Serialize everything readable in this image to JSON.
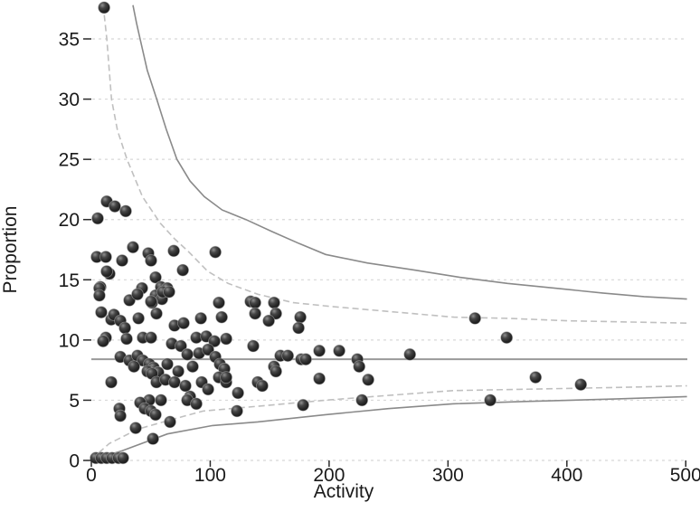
{
  "chart_data": {
    "type": "scatter",
    "variant": "funnel-plot",
    "title": "",
    "xlabel": "Activity",
    "ylabel": "Proportion",
    "xlim": [
      0,
      500
    ],
    "ylim": [
      0,
      38
    ],
    "x_ticks": [
      0,
      100,
      200,
      300,
      400,
      500
    ],
    "y_ticks": [
      0,
      5,
      10,
      15,
      20,
      25,
      30,
      35
    ],
    "grid": "horizontal-dotted",
    "legend": "none",
    "mean_line": 8.4,
    "limit_curves": {
      "upper_solid": [
        [
          35,
          37.8
        ],
        [
          38,
          36.3
        ],
        [
          41,
          35
        ],
        [
          47,
          32.4
        ],
        [
          55,
          30
        ],
        [
          63,
          27.5
        ],
        [
          72,
          25
        ],
        [
          83,
          23.2
        ],
        [
          95,
          21.9
        ],
        [
          110,
          20.8
        ],
        [
          130,
          20
        ],
        [
          152,
          19.0
        ],
        [
          175,
          18.0
        ],
        [
          197,
          17.1
        ],
        [
          232,
          16.4
        ],
        [
          272,
          15.8
        ],
        [
          310,
          15.2
        ],
        [
          350,
          14.7
        ],
        [
          390,
          14.3
        ],
        [
          430,
          13.9
        ],
        [
          465,
          13.6
        ],
        [
          501,
          13.4
        ]
      ],
      "upper_dashed": [
        [
          10,
          37.8
        ],
        [
          13,
          35
        ],
        [
          17,
          30
        ],
        [
          22,
          27.4
        ],
        [
          30,
          25
        ],
        [
          43,
          21.9
        ],
        [
          58,
          19.7
        ],
        [
          70,
          18.4
        ],
        [
          81,
          17.4
        ],
        [
          98,
          15.7
        ],
        [
          115,
          14.7
        ],
        [
          140,
          13.8
        ],
        [
          170,
          13.1
        ],
        [
          200,
          12.8
        ],
        [
          235,
          12.5
        ],
        [
          270,
          12.2
        ],
        [
          305,
          11.9
        ],
        [
          350,
          11.8
        ],
        [
          400,
          11.6
        ],
        [
          450,
          11.5
        ],
        [
          501,
          11.4
        ]
      ],
      "lower_dashed": [
        [
          0,
          0.1
        ],
        [
          15,
          1.4
        ],
        [
          39,
          2.6
        ],
        [
          64,
          3.3
        ],
        [
          94,
          4.1
        ],
        [
          140,
          4.5
        ],
        [
          197,
          5.0
        ],
        [
          250,
          5.4
        ],
        [
          304,
          5.8
        ],
        [
          360,
          5.9
        ],
        [
          412,
          6.0
        ],
        [
          460,
          6.1
        ],
        [
          501,
          6.2
        ]
      ],
      "lower_solid": [
        [
          0,
          0.05
        ],
        [
          26,
          0.8
        ],
        [
          64,
          2.2
        ],
        [
          102,
          2.9
        ],
        [
          140,
          3.2
        ],
        [
          197,
          3.8
        ],
        [
          250,
          4.3
        ],
        [
          304,
          4.7
        ],
        [
          365,
          4.9
        ],
        [
          440,
          5.1
        ],
        [
          501,
          5.3
        ]
      ]
    },
    "points": [
      [
        10.7,
        37.6
      ],
      [
        12.9,
        21.5
      ],
      [
        19.8,
        21.1
      ],
      [
        28.9,
        20.7
      ],
      [
        5.3,
        20.1
      ],
      [
        35.0,
        17.7
      ],
      [
        4.6,
        16.9
      ],
      [
        12.2,
        16.9
      ],
      [
        25.9,
        16.6
      ],
      [
        47.9,
        17.2
      ],
      [
        50.2,
        16.6
      ],
      [
        69.3,
        17.4
      ],
      [
        104.3,
        17.3
      ],
      [
        76.9,
        15.8
      ],
      [
        15.2,
        15.5
      ],
      [
        12.9,
        15.7
      ],
      [
        7.6,
        14.4
      ],
      [
        54.0,
        15.2
      ],
      [
        58.6,
        14.4
      ],
      [
        63.9,
        14.3
      ],
      [
        42.6,
        14.3
      ],
      [
        6.8,
        14.3
      ],
      [
        54.0,
        13.7
      ],
      [
        59.4,
        13.4
      ],
      [
        51.0,
        13.1
      ],
      [
        6.8,
        13.7
      ],
      [
        32.0,
        13.3
      ],
      [
        38.8,
        13.8
      ],
      [
        50.2,
        13.2
      ],
      [
        60.1,
        14.0
      ],
      [
        65.4,
        14.0
      ],
      [
        107.3,
        13.1
      ],
      [
        134.0,
        13.2
      ],
      [
        137.8,
        13.1
      ],
      [
        153.7,
        13.1
      ],
      [
        8.4,
        12.3
      ],
      [
        16.7,
        11.7
      ],
      [
        19.0,
        12.1
      ],
      [
        24.4,
        11.6
      ],
      [
        28.2,
        11.0
      ],
      [
        39.6,
        11.8
      ],
      [
        54.8,
        12.2
      ],
      [
        70.0,
        11.2
      ],
      [
        77.6,
        11.4
      ],
      [
        92.1,
        11.8
      ],
      [
        109.6,
        11.9
      ],
      [
        137.8,
        12.2
      ],
      [
        155.3,
        12.2
      ],
      [
        149.2,
        11.6
      ],
      [
        175.8,
        11.9
      ],
      [
        174.3,
        11.0
      ],
      [
        322.7,
        11.8
      ],
      [
        12.2,
        10.2
      ],
      [
        29.7,
        10.1
      ],
      [
        43.4,
        10.2
      ],
      [
        50.2,
        10.2
      ],
      [
        67.7,
        9.7
      ],
      [
        75.3,
        9.5
      ],
      [
        88.3,
        10.2
      ],
      [
        96.7,
        10.3
      ],
      [
        103.5,
        9.9
      ],
      [
        113.4,
        10.1
      ],
      [
        9.9,
        9.9
      ],
      [
        349.3,
        10.2
      ],
      [
        24.4,
        8.6
      ],
      [
        32.0,
        8.3
      ],
      [
        38.8,
        8.7
      ],
      [
        43.4,
        8.3
      ],
      [
        48.7,
        8.0
      ],
      [
        80.7,
        8.8
      ],
      [
        90.6,
        8.9
      ],
      [
        98.2,
        9.2
      ],
      [
        104.3,
        8.6
      ],
      [
        136.2,
        9.5
      ],
      [
        159.1,
        8.7
      ],
      [
        165.2,
        8.7
      ],
      [
        191.8,
        9.1
      ],
      [
        176.6,
        8.4
      ],
      [
        180.4,
        8.4
      ],
      [
        208.5,
        9.1
      ],
      [
        223.7,
        8.4
      ],
      [
        267.9,
        8.8
      ],
      [
        52.5,
        7.7
      ],
      [
        56.3,
        7.3
      ],
      [
        63.9,
        8.0
      ],
      [
        73.1,
        7.4
      ],
      [
        85.2,
        7.8
      ],
      [
        108.1,
        8.0
      ],
      [
        111.9,
        7.6
      ],
      [
        35.8,
        7.8
      ],
      [
        47.2,
        7.4
      ],
      [
        51.0,
        7.2
      ],
      [
        225.3,
        7.8
      ],
      [
        153.7,
        7.8
      ],
      [
        155.3,
        7.4
      ],
      [
        16.7,
        6.5
      ],
      [
        54.8,
        6.5
      ],
      [
        62.4,
        6.7
      ],
      [
        70.0,
        6.5
      ],
      [
        79.1,
        6.2
      ],
      [
        92.8,
        6.5
      ],
      [
        98.2,
        5.9
      ],
      [
        107.3,
        6.9
      ],
      [
        113.4,
        6.5
      ],
      [
        113.4,
        6.9
      ],
      [
        140.0,
        6.5
      ],
      [
        143.8,
        6.2
      ],
      [
        191.8,
        6.8
      ],
      [
        232.9,
        6.7
      ],
      [
        373.7,
        6.9
      ],
      [
        411.7,
        6.3
      ],
      [
        48.7,
        5.0
      ],
      [
        83.0,
        5.3
      ],
      [
        123.3,
        5.6
      ],
      [
        178.1,
        4.6
      ],
      [
        227.6,
        5.0
      ],
      [
        122.5,
        4.1
      ],
      [
        335.6,
        5.0
      ],
      [
        23.6,
        4.3
      ],
      [
        24.4,
        3.7
      ],
      [
        37.3,
        2.7
      ],
      [
        41.1,
        4.8
      ],
      [
        44.9,
        4.3
      ],
      [
        50.2,
        4.1
      ],
      [
        54.0,
        3.8
      ],
      [
        58.6,
        5.0
      ],
      [
        80.7,
        5.0
      ],
      [
        88.3,
        4.7
      ],
      [
        66.2,
        3.2
      ],
      [
        51.8,
        1.8
      ],
      [
        3.8,
        0.2
      ],
      [
        8.4,
        0.2
      ],
      [
        12.9,
        0.2
      ],
      [
        17.5,
        0.2
      ],
      [
        22.8,
        0.2
      ],
      [
        26.6,
        0.2
      ]
    ],
    "colors": {
      "point_core": "#1f1f1f",
      "point_mid": "#464646",
      "point_highlight": "#8f8f8f",
      "point_ring": "#b0b0b0",
      "solid_curve": "#8a8a8a",
      "dashed_curve": "#c0c0c0",
      "mean_line": "#9a9a9a",
      "gridline": "#d8d8d8",
      "tick": "#2a2a2a",
      "text": "#1a1a1a"
    }
  }
}
